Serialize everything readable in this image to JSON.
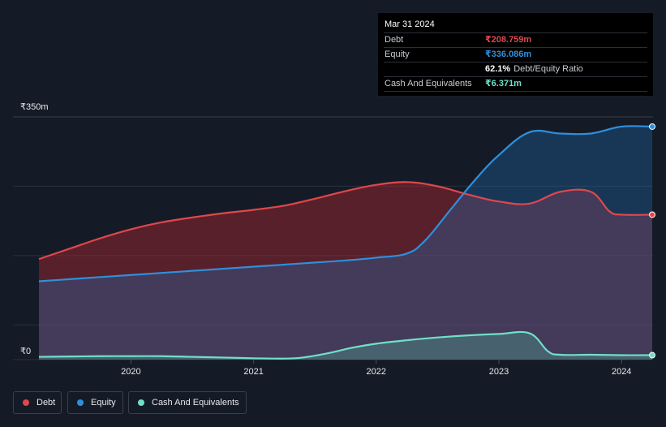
{
  "colors": {
    "background": "#151b26",
    "debt": "#e0474c",
    "equity": "#2f8fdc",
    "cash": "#6fe0c8",
    "grid": "#2a303b"
  },
  "tooltip": {
    "date": "Mar 31 2024",
    "rows": [
      {
        "label": "Debt",
        "value": "₹208.759m"
      },
      {
        "label": "Equity",
        "value": "₹336.086m"
      },
      {
        "ratio_value": "62.1%",
        "ratio_label": "Debt/Equity Ratio"
      },
      {
        "label": "Cash And Equivalents",
        "value": "₹6.371m"
      }
    ]
  },
  "legend": [
    {
      "label": "Debt"
    },
    {
      "label": "Equity"
    },
    {
      "label": "Cash And Equivalents"
    }
  ],
  "chart_data": {
    "type": "area",
    "ylabel_top": "₹350m",
    "ylabel_bottom": "₹0",
    "ylim": [
      0,
      350
    ],
    "xlim": [
      2019.25,
      2024.25
    ],
    "x_ticks": [
      2020,
      2021,
      2022,
      2023,
      2024
    ],
    "x_tick_labels": [
      "2020",
      "2021",
      "2022",
      "2023",
      "2024"
    ],
    "series": [
      {
        "name": "Debt",
        "x": [
          2019.25,
          2019.5,
          2019.75,
          2020.0,
          2020.25,
          2020.5,
          2020.75,
          2021.0,
          2021.25,
          2021.5,
          2021.75,
          2022.0,
          2022.25,
          2022.5,
          2022.75,
          2023.0,
          2023.25,
          2023.5,
          2023.75,
          2023.9,
          2024.0,
          2024.25
        ],
        "values": [
          145,
          160,
          175,
          188,
          198,
          205,
          211,
          216,
          222,
          232,
          243,
          252,
          256,
          250,
          238,
          228,
          225,
          242,
          242,
          214,
          209,
          209
        ]
      },
      {
        "name": "Equity",
        "x": [
          2019.25,
          2019.5,
          2019.75,
          2020.0,
          2020.25,
          2020.5,
          2020.75,
          2021.0,
          2021.25,
          2021.5,
          2021.75,
          2022.0,
          2022.25,
          2022.4,
          2022.6,
          2022.8,
          2023.0,
          2023.25,
          2023.5,
          2023.75,
          2024.0,
          2024.25
        ],
        "values": [
          113,
          116,
          119,
          122,
          125,
          128,
          131,
          134,
          137,
          140,
          143,
          147,
          153,
          172,
          215,
          258,
          295,
          328,
          326,
          326,
          336,
          336
        ]
      },
      {
        "name": "Cash And Equivalents",
        "x": [
          2019.25,
          2019.5,
          2019.75,
          2020.0,
          2020.25,
          2020.5,
          2020.75,
          2021.0,
          2021.25,
          2021.4,
          2021.6,
          2021.8,
          2022.0,
          2022.25,
          2022.5,
          2022.75,
          2023.0,
          2023.25,
          2023.4,
          2023.5,
          2023.75,
          2024.0,
          2024.25
        ],
        "values": [
          4,
          4.5,
          5,
          5,
          5,
          4,
          3,
          2,
          1.5,
          3,
          9,
          17,
          23,
          28,
          32,
          35,
          37,
          38,
          12,
          7,
          7,
          6.4,
          6.4
        ]
      }
    ]
  }
}
